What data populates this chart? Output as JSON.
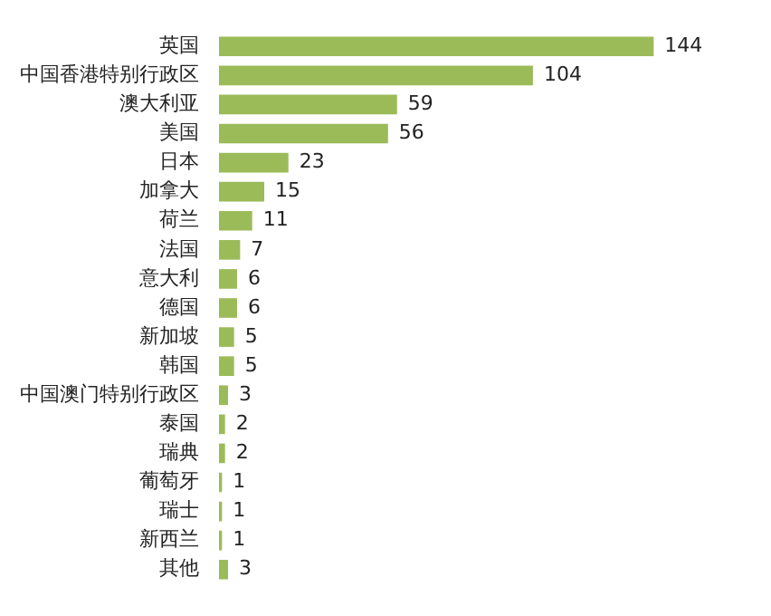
{
  "chart_data": {
    "type": "bar",
    "orientation": "horizontal",
    "categories": [
      "英国",
      "中国香港特别行政区",
      "澳大利亚",
      "美国",
      "日本",
      "加拿大",
      "荷兰",
      "法国",
      "意大利",
      "德国",
      "新加坡",
      "韩国",
      "中国澳门特别行政区",
      "泰国",
      "瑞典",
      "葡萄牙",
      "瑞士",
      "新西兰",
      "其他"
    ],
    "values": [
      144,
      104,
      59,
      56,
      23,
      15,
      11,
      7,
      6,
      6,
      5,
      5,
      3,
      2,
      2,
      1,
      1,
      1,
      3
    ],
    "color": "#9bbb59",
    "data_labels": true,
    "legend": false
  }
}
